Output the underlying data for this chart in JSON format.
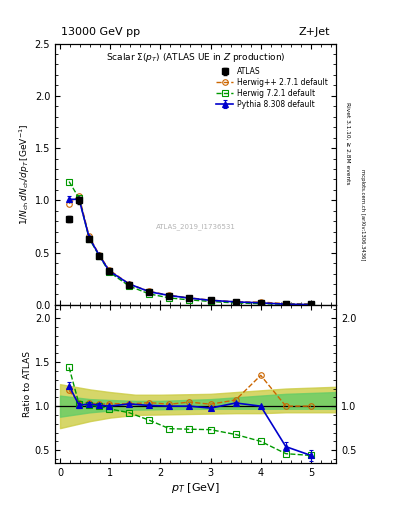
{
  "title_top": "13000 GeV pp",
  "title_right": "Z+Jet",
  "plot_title": "Scalar Σ(pₜ) (ATLAS UE in Z production)",
  "watermark": "ATLAS_2019_I1736531",
  "right_label": "Rivet 3.1.10, ≥ 2.8M events",
  "right_label2": "mcplots.cern.ch [arXiv:1306.3436]",
  "atlas_x": [
    0.18,
    0.38,
    0.58,
    0.78,
    0.98,
    1.38,
    1.78,
    2.18,
    2.58,
    3.0,
    3.5,
    4.0,
    4.5,
    5.0
  ],
  "atlas_y": [
    0.82,
    1.0,
    0.63,
    0.47,
    0.325,
    0.195,
    0.125,
    0.09,
    0.065,
    0.045,
    0.028,
    0.02,
    0.013,
    0.009
  ],
  "atlas_yerr": [
    0.03,
    0.03,
    0.02,
    0.015,
    0.01,
    0.008,
    0.005,
    0.004,
    0.003,
    0.002,
    0.0015,
    0.001,
    0.001,
    0.001
  ],
  "herwig1_x": [
    0.18,
    0.38,
    0.58,
    0.78,
    0.98,
    1.38,
    1.78,
    2.18,
    2.58,
    3.0,
    3.5,
    4.0,
    4.5,
    5.0
  ],
  "herwig1_y": [
    0.97,
    1.04,
    0.655,
    0.48,
    0.335,
    0.2,
    0.13,
    0.092,
    0.068,
    0.046,
    0.03,
    0.027,
    0.013,
    0.009
  ],
  "herwig2_x": [
    0.18,
    0.38,
    0.58,
    0.78,
    0.98,
    1.38,
    1.78,
    2.18,
    2.58,
    3.0,
    3.5,
    4.0,
    4.5,
    5.0
  ],
  "herwig2_y": [
    1.18,
    1.02,
    0.635,
    0.47,
    0.315,
    0.18,
    0.105,
    0.067,
    0.048,
    0.033,
    0.019,
    0.012,
    0.006,
    0.004
  ],
  "pythia_x": [
    0.18,
    0.38,
    0.58,
    0.78,
    0.98,
    1.38,
    1.78,
    2.18,
    2.58,
    3.0,
    3.5,
    4.0,
    4.5,
    5.0
  ],
  "pythia_y": [
    1.01,
    1.01,
    0.645,
    0.475,
    0.325,
    0.2,
    0.126,
    0.09,
    0.065,
    0.044,
    0.029,
    0.02,
    0.007,
    0.004
  ],
  "pythia_yerr": [
    0.03,
    0.025,
    0.018,
    0.013,
    0.01,
    0.007,
    0.005,
    0.004,
    0.003,
    0.002,
    0.0015,
    0.001,
    0.001,
    0.001
  ],
  "ratio_herwig1_y": [
    1.18,
    1.04,
    1.04,
    1.02,
    1.03,
    1.025,
    1.04,
    1.022,
    1.046,
    1.022,
    1.07,
    1.35,
    1.0,
    1.0
  ],
  "ratio_herwig2_y": [
    1.44,
    1.02,
    1.01,
    1.0,
    0.97,
    0.925,
    0.84,
    0.744,
    0.738,
    0.733,
    0.678,
    0.6,
    0.46,
    0.44
  ],
  "ratio_pythia_y": [
    1.23,
    1.01,
    1.025,
    1.011,
    1.0,
    1.025,
    1.008,
    1.0,
    1.0,
    0.978,
    1.036,
    1.0,
    0.54,
    0.44
  ],
  "ratio_pythia_yerr": [
    0.04,
    0.03,
    0.025,
    0.02,
    0.018,
    0.015,
    0.012,
    0.01,
    0.008,
    0.007,
    0.006,
    0.005,
    0.05,
    0.06
  ],
  "band_x": [
    0.0,
    0.6,
    1.0,
    1.5,
    2.0,
    2.5,
    3.0,
    3.5,
    4.0,
    4.5,
    5.5
  ],
  "band_green_lo": [
    0.88,
    0.93,
    0.95,
    0.96,
    0.965,
    0.968,
    0.97,
    0.97,
    0.97,
    0.97,
    0.97
  ],
  "band_green_hi": [
    1.12,
    1.08,
    1.07,
    1.06,
    1.06,
    1.07,
    1.08,
    1.1,
    1.12,
    1.14,
    1.16
  ],
  "band_yellow_lo": [
    0.75,
    0.83,
    0.87,
    0.9,
    0.905,
    0.91,
    0.915,
    0.92,
    0.92,
    0.93,
    0.93
  ],
  "band_yellow_hi": [
    1.25,
    1.19,
    1.16,
    1.13,
    1.13,
    1.135,
    1.14,
    1.16,
    1.18,
    1.2,
    1.22
  ],
  "color_atlas": "#000000",
  "color_herwig1": "#cc6600",
  "color_herwig2": "#009900",
  "color_pythia": "#0000cc",
  "color_green_band": "#66cc66",
  "color_yellow_band": "#cccc44",
  "main_ylim": [
    0.0,
    2.5
  ],
  "main_yticks": [
    0.0,
    0.5,
    1.0,
    1.5,
    2.0,
    2.5
  ],
  "ratio_ylim": [
    0.35,
    2.15
  ],
  "ratio_yticks": [
    0.5,
    1.0,
    1.5,
    2.0
  ],
  "xlim": [
    -0.1,
    5.5
  ]
}
